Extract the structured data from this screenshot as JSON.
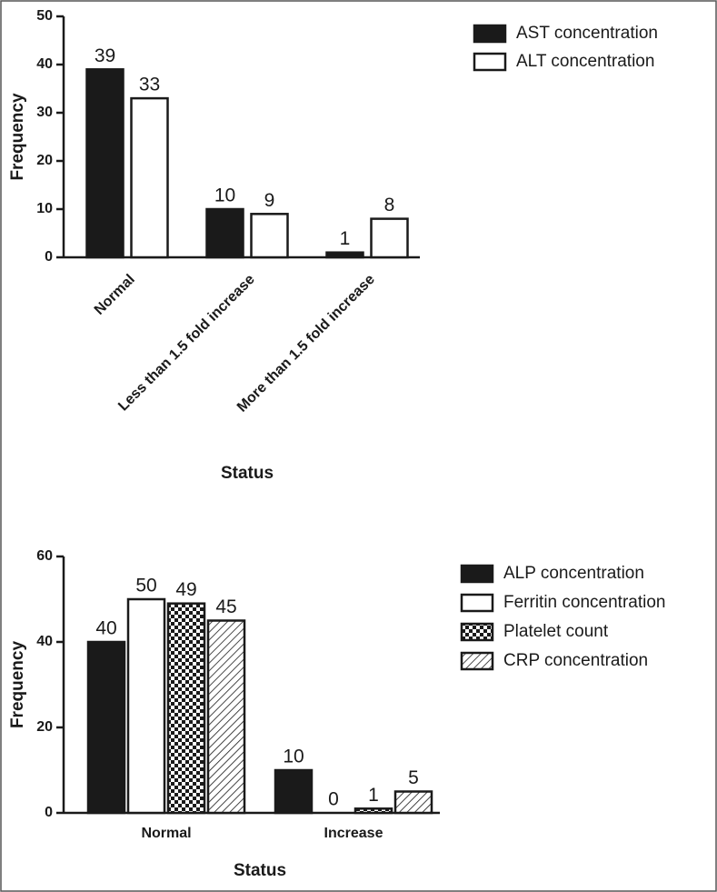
{
  "chart_data": [
    {
      "type": "bar",
      "ylabel": "Frequency",
      "xlabel": "Status",
      "categories": [
        "Normal",
        "Less than 1.5 fold increase",
        "More than 1.5 fold increase"
      ],
      "series": [
        {
          "name": "AST concentration",
          "color": "#1a1a1a",
          "pattern": "solid",
          "values": [
            39,
            10,
            1
          ]
        },
        {
          "name": "ALT concentration",
          "color": "#ffffff",
          "pattern": "solid",
          "values": [
            33,
            9,
            8
          ]
        }
      ],
      "ylim": [
        0,
        50
      ],
      "yticks": [
        0,
        10,
        20,
        30,
        40,
        50
      ],
      "legend": "upper right"
    },
    {
      "type": "bar",
      "ylabel": "Frequency",
      "xlabel": "Status",
      "categories": [
        "Normal",
        "Increase"
      ],
      "series": [
        {
          "name": "ALP concentration",
          "color": "#1a1a1a",
          "pattern": "solid",
          "values": [
            40,
            10
          ]
        },
        {
          "name": "Ferritin concentration",
          "color": "#ffffff",
          "pattern": "solid",
          "values": [
            50,
            0
          ]
        },
        {
          "name": "Platelet count",
          "color": "#1a1a1a",
          "pattern": "checker",
          "values": [
            49,
            1
          ]
        },
        {
          "name": "CRP concentration",
          "color": "#1a1a1a",
          "pattern": "hatch",
          "values": [
            45,
            5
          ]
        }
      ],
      "ylim": [
        0,
        60
      ],
      "yticks": [
        0,
        20,
        40,
        60
      ],
      "legend": "upper right"
    }
  ]
}
